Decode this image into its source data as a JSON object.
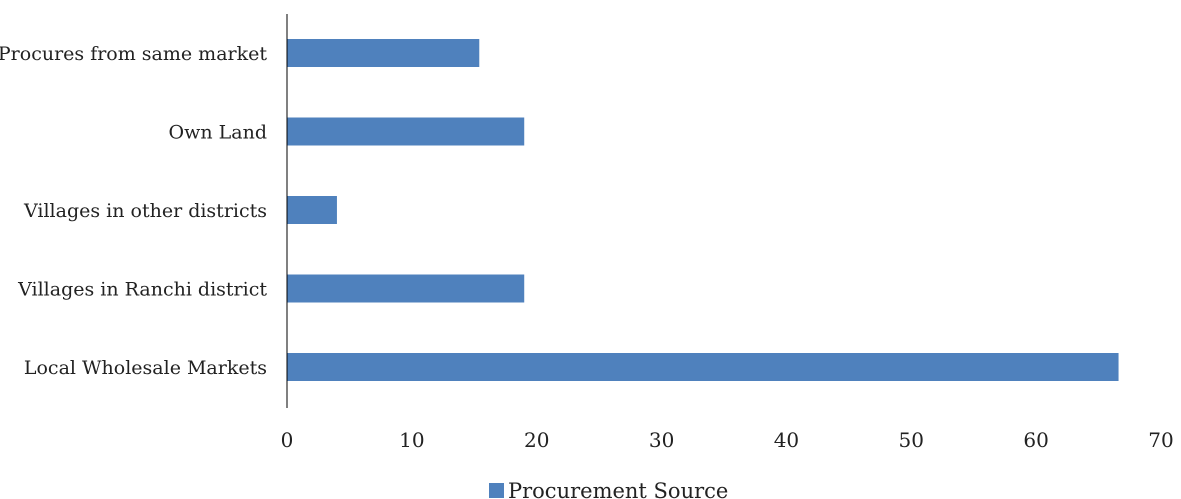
{
  "chart_data": {
    "type": "bar",
    "orientation": "horizontal",
    "categories": [
      "Procures from same market",
      "Own Land",
      "Villages in other districts",
      "Villages in Ranchi district",
      "Local Wholesale Markets"
    ],
    "series": [
      {
        "name": "Procurement Source",
        "values": [
          15.4,
          19,
          4,
          19,
          66.6
        ],
        "color": "#4F81BD"
      }
    ],
    "x_ticks": [
      0,
      10,
      20,
      30,
      40,
      50,
      60,
      70
    ],
    "xlim": [
      0,
      70
    ],
    "grid": false,
    "legend_position": "bottom"
  }
}
